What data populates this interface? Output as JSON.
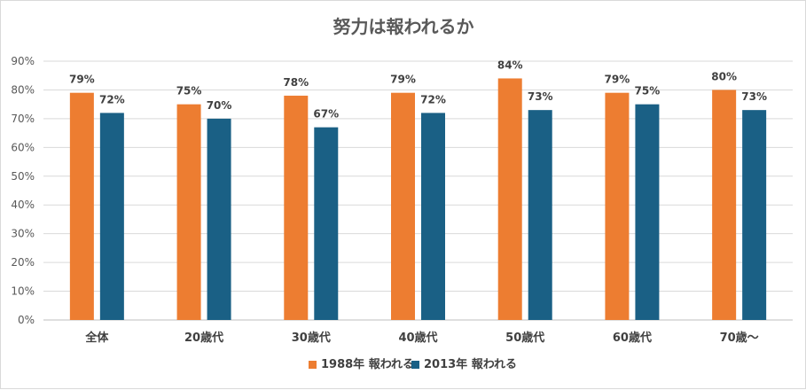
{
  "chart_data": {
    "type": "bar",
    "title": "努力は報われるか",
    "categories": [
      "全体",
      "20歳代",
      "30歳代",
      "40歳代",
      "50歳代",
      "60歳代",
      "70歳～"
    ],
    "series": [
      {
        "name": "1988年 報われる",
        "values": [
          79,
          75,
          78,
          79,
          84,
          79,
          80
        ],
        "color": "#ED7D31"
      },
      {
        "name": "2013年 報われる",
        "values": [
          72,
          70,
          67,
          72,
          73,
          75,
          73
        ],
        "color": "#1A6085"
      }
    ],
    "value_suffix": "%",
    "ylim": [
      0,
      90
    ],
    "yticks": [
      0,
      10,
      20,
      30,
      40,
      50,
      60,
      70,
      80,
      90
    ],
    "xlabel": "",
    "ylabel": "",
    "grid": true,
    "legend": "bottom"
  }
}
